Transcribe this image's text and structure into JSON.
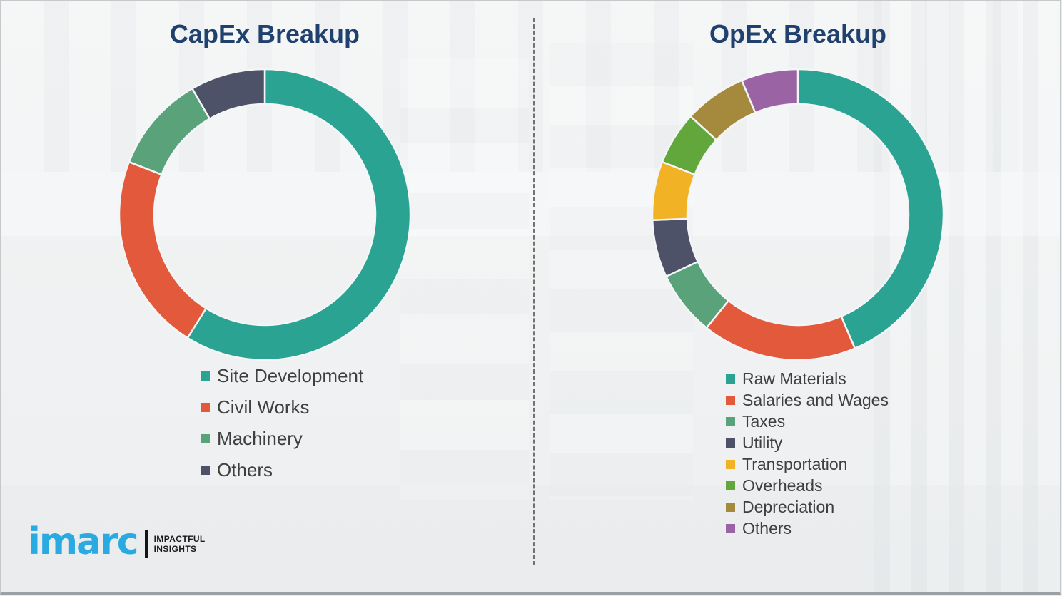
{
  "page": {
    "background_color": "#f1f2f3",
    "divider_style": "vertical-dashed"
  },
  "titles_color": "#20406E",
  "chart_data": [
    {
      "type": "pie",
      "subtype": "donut",
      "title": "CapEx Breakup",
      "labels": [
        "Site Development",
        "Civil Works",
        "Machinery",
        "Others"
      ],
      "values": [
        58.9,
        22.0,
        10.8,
        8.3
      ],
      "colors": [
        "#2AA392",
        "#E2593C",
        "#5AA37A",
        "#4D5268"
      ],
      "start_angle_deg": 0,
      "direction": "clockwise",
      "legend_position": "below-left",
      "data_labels_shown": false
    },
    {
      "type": "pie",
      "subtype": "donut",
      "title": "OpEx Breakup",
      "labels": [
        "Raw Materials",
        "Salaries and Wages",
        "Taxes",
        "Utility",
        "Transportation",
        "Overheads",
        "Depreciation",
        "Others"
      ],
      "values": [
        43.6,
        17.2,
        7.2,
        6.4,
        6.5,
        5.9,
        6.9,
        6.3
      ],
      "colors": [
        "#2AA392",
        "#E2593C",
        "#5AA37A",
        "#4D5268",
        "#F2B226",
        "#62A73C",
        "#A5893C",
        "#9A64A4"
      ],
      "start_angle_deg": 0,
      "direction": "clockwise",
      "legend_position": "below-left",
      "data_labels_shown": false
    }
  ],
  "branding": {
    "logo_text": "imarc",
    "tagline_line1": "IMPACTFUL",
    "tagline_line2": "INSIGHTS",
    "logo_color": "#29ABE2"
  }
}
